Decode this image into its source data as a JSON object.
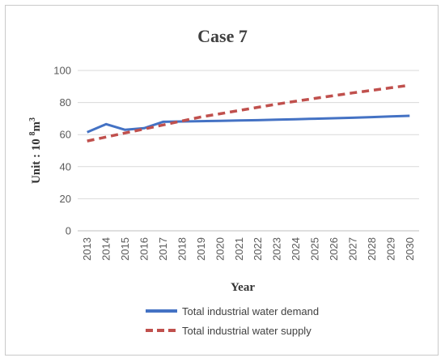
{
  "chart_data": {
    "type": "line",
    "title": "Case 7",
    "xlabel": "Year",
    "ylabel_main": "Unit : 10 ",
    "ylabel_sup1": "8",
    "ylabel_unit": "m",
    "ylabel_sup2": "3",
    "categories": [
      "2013",
      "2014",
      "2015",
      "2016",
      "2017",
      "2018",
      "2019",
      "2020",
      "2021",
      "2022",
      "2023",
      "2024",
      "2025",
      "2026",
      "2027",
      "2028",
      "2029",
      "2030"
    ],
    "ylim": [
      0,
      100
    ],
    "yticks": [
      "0",
      "20",
      "40",
      "60",
      "80",
      "100"
    ],
    "grid": true,
    "legend_position": "bottom",
    "series": [
      {
        "name": "Total industrial water demand",
        "color": "#4472c4",
        "dash": "solid",
        "values": [
          61.5,
          66.5,
          63.0,
          64.0,
          68.0,
          68.2,
          68.4,
          68.6,
          68.8,
          69.0,
          69.3,
          69.6,
          69.9,
          70.2,
          70.5,
          70.9,
          71.3,
          71.7
        ]
      },
      {
        "name": "Total industrial water supply",
        "color": "#c0504d",
        "dash": "dashed",
        "values": [
          56.0,
          58.5,
          61.0,
          63.5,
          66.0,
          68.5,
          71.0,
          73.0,
          75.0,
          77.0,
          79.0,
          80.8,
          82.6,
          84.3,
          86.0,
          87.6,
          89.2,
          90.8
        ]
      }
    ]
  }
}
